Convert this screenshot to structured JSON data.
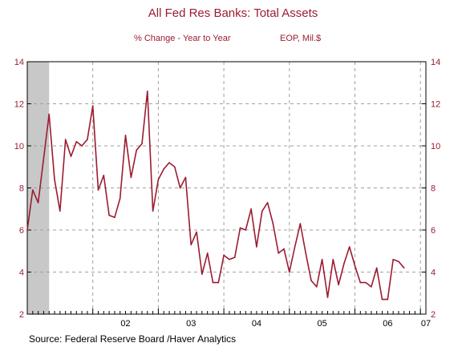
{
  "colors": {
    "accent": "#9b1c31",
    "recession": "#c8c8c8",
    "grid": "#a0a0a0"
  },
  "chart_data": {
    "type": "line",
    "title": "All Fed Res Banks: Total Assets",
    "subtitle_left": "% Change - Year to Year",
    "subtitle_right": "EOP, Mil.$",
    "source": "Source:  Federal Reserve Board /Haver Analytics",
    "ylim": [
      2,
      14
    ],
    "y_ticks": [
      2,
      4,
      6,
      8,
      10,
      12,
      14
    ],
    "x_range": [
      2001.0,
      2007.0833
    ],
    "x_ticks": [
      {
        "label": "02",
        "x": 2002.5
      },
      {
        "label": "03",
        "x": 2003.5
      },
      {
        "label": "04",
        "x": 2004.5
      },
      {
        "label": "05",
        "x": 2005.5
      },
      {
        "label": "06",
        "x": 2006.5
      },
      {
        "label": "07",
        "x": 2007.0833
      }
    ],
    "year_gridlines": [
      2002,
      2003,
      2004,
      2005,
      2006,
      2007
    ],
    "shaded_regions": [
      {
        "start": 2001.0,
        "end": 2001.3333
      }
    ],
    "grid": true,
    "series": [
      {
        "x": [
          2001.0,
          2001.0833,
          2001.1667,
          2001.25,
          2001.3333,
          2001.4167,
          2001.5,
          2001.5833,
          2001.6667,
          2001.75,
          2001.8333,
          2001.9167,
          2002.0,
          2002.0833,
          2002.1667,
          2002.25,
          2002.3333,
          2002.4167,
          2002.5,
          2002.5833,
          2002.6667,
          2002.75,
          2002.8333,
          2002.9167,
          2003.0,
          2003.0833,
          2003.1667,
          2003.25,
          2003.3333,
          2003.4167,
          2003.5,
          2003.5833,
          2003.6667,
          2003.75,
          2003.8333,
          2003.9167,
          2004.0,
          2004.0833,
          2004.1667,
          2004.25,
          2004.3333,
          2004.4167,
          2004.5,
          2004.5833,
          2004.6667,
          2004.75,
          2004.8333,
          2004.9167,
          2005.0,
          2005.0833,
          2005.1667,
          2005.25,
          2005.3333,
          2005.4167,
          2005.5,
          2005.5833,
          2005.6667,
          2005.75,
          2005.8333,
          2005.9167,
          2006.0,
          2006.0833,
          2006.1667,
          2006.25,
          2006.3333,
          2006.4167,
          2006.5,
          2006.5833,
          2006.6667,
          2006.75
        ],
        "values": [
          6.0,
          7.9,
          7.3,
          9.4,
          11.5,
          8.4,
          6.9,
          10.3,
          9.5,
          10.2,
          10.0,
          10.3,
          11.9,
          7.9,
          8.6,
          6.7,
          6.6,
          7.5,
          10.5,
          8.5,
          9.8,
          10.1,
          12.6,
          6.9,
          8.4,
          8.9,
          9.2,
          9.0,
          8.0,
          8.5,
          5.3,
          5.9,
          3.9,
          4.9,
          3.5,
          3.5,
          4.8,
          4.6,
          4.7,
          6.1,
          6.0,
          7.0,
          5.2,
          6.9,
          7.3,
          6.3,
          4.9,
          5.1,
          4.0,
          5.2,
          6.3,
          4.9,
          3.6,
          3.3,
          4.6,
          2.8,
          4.6,
          3.4,
          4.4,
          5.2,
          4.3,
          3.5,
          3.5,
          3.3,
          4.2,
          2.7,
          2.7,
          4.6,
          4.5,
          4.2
        ]
      }
    ]
  }
}
